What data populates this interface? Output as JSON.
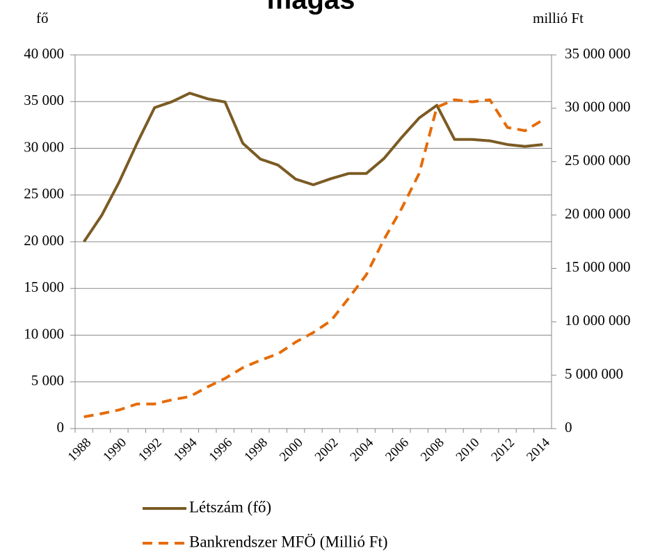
{
  "chart_data": {
    "type": "line",
    "title": "magas",
    "y_label": "fő",
    "y2_label": "millió Ft",
    "categories": [
      "1988",
      null,
      "1990",
      null,
      "1992",
      null,
      "1994",
      null,
      "1996",
      null,
      "1998",
      null,
      "2000",
      null,
      "2002",
      null,
      "2004",
      null,
      "2006",
      null,
      "2008",
      null,
      "2010",
      null,
      "2012",
      null,
      "2014"
    ],
    "series": [
      {
        "name": "Létszám (fő)",
        "color": "#7b5b24",
        "dash": false,
        "values": [
          20000,
          22800,
          26400,
          30500,
          34350,
          35000,
          35900,
          35300,
          34950,
          30550,
          28850,
          28200,
          26700,
          26100,
          26750,
          27300,
          27300,
          28900,
          31150,
          33250,
          34600,
          30950,
          30950,
          30800,
          30400,
          30200,
          30400
        ]
      },
      {
        "name": "Bankrendszer MFÖ (Millió Ft)",
        "color": "#e46c0a",
        "dash": true,
        "axis": "y2",
        "values": [
          1100000,
          1400000,
          1750000,
          2300000,
          2300000,
          2700000,
          3000000,
          3900000,
          4700000,
          5700000,
          6400000,
          7000000,
          8100000,
          9000000,
          10100000,
          12200000,
          14400000,
          17700000,
          20600000,
          23900000,
          30100000,
          30800000,
          30600000,
          30800000,
          28200000,
          27900000,
          28900000
        ]
      }
    ],
    "ylim": [
      0,
      40000
    ],
    "yticks": [
      0,
      {
        "value": 5000,
        "label": "5 000"
      },
      {
        "value": 10000,
        "label": "10 000"
      },
      {
        "value": 15000,
        "label": "15 000"
      },
      {
        "value": 20000,
        "label": "20 000"
      },
      {
        "value": 25000,
        "label": "25 000"
      },
      {
        "value": 30000,
        "label": "30 000"
      },
      {
        "value": 35000,
        "label": "35 000"
      },
      {
        "value": 40000,
        "label": "40 000"
      }
    ],
    "y2lim": [
      0,
      35000000
    ],
    "y2ticks": [
      0,
      {
        "value": 5000000,
        "label": "5 000 000"
      },
      {
        "value": 10000000,
        "label": "10 000 000"
      },
      {
        "value": 15000000,
        "label": "15 000 000"
      },
      {
        "value": 20000000,
        "label": "20 000 000"
      },
      {
        "value": 25000000,
        "label": "25 000 000"
      },
      {
        "value": 30000000,
        "label": "30 000 000"
      },
      {
        "value": 35000000,
        "label": "35 000 000"
      }
    ],
    "grid": true,
    "legend": "bottom"
  }
}
